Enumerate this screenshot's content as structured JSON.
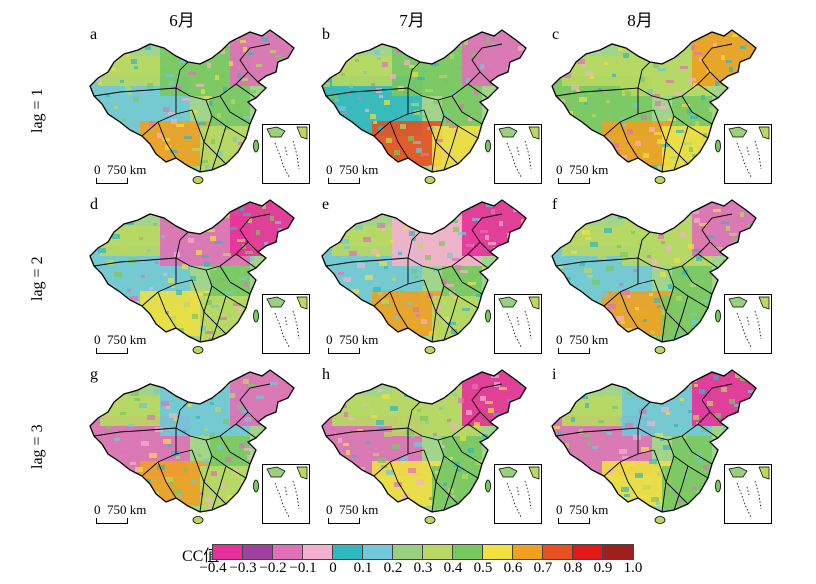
{
  "columns": [
    "6月",
    "7月",
    "8月"
  ],
  "rows": [
    "lag = 1",
    "lag = 2",
    "lag = 3"
  ],
  "panels": [
    {
      "letter": "a",
      "scale": "0  750 km"
    },
    {
      "letter": "b",
      "scale": "0  750 km"
    },
    {
      "letter": "c",
      "scale": "0  750 km"
    },
    {
      "letter": "d",
      "scale": "0  750 km"
    },
    {
      "letter": "e",
      "scale": "0  750 km"
    },
    {
      "letter": "f",
      "scale": "0  750 km"
    },
    {
      "letter": "g",
      "scale": "0  750 km"
    },
    {
      "letter": "h",
      "scale": "0  750 km"
    },
    {
      "letter": "i",
      "scale": "0  750 km"
    }
  ],
  "legend": {
    "title": "CC值",
    "ticks": [
      "−0.4",
      "−0.3",
      "−0.2",
      "−0.1",
      "0",
      "0.1",
      "0.2",
      "0.3",
      "0.4",
      "0.5",
      "0.6",
      "0.7",
      "0.8",
      "0.9",
      "1.0"
    ],
    "colors": [
      "#e8309a",
      "#a040a0",
      "#e070b8",
      "#f4b0cc",
      "#2fb8c0",
      "#70c8d8",
      "#98d080",
      "#b8d860",
      "#78c860",
      "#f0e040",
      "#f0a020",
      "#e85020",
      "#e01818",
      "#a02020"
    ]
  }
}
